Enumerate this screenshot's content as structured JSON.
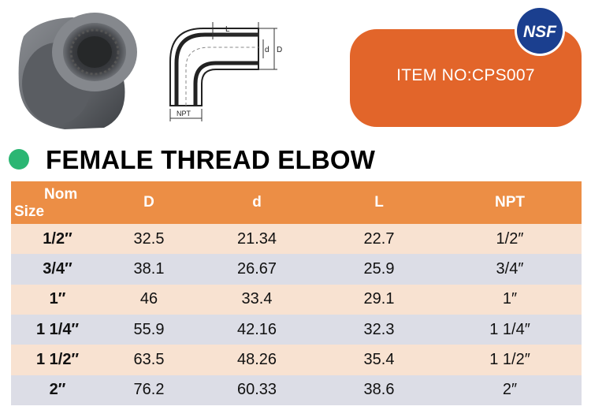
{
  "item_label": "ITEM NO:CPS007",
  "certification_logo": "NSF",
  "title": "FEMALE THREAD ELBOW",
  "drawing_labels": {
    "length": "L",
    "inner_diameter": "d",
    "outer_diameter": "D",
    "thread": "NPT"
  },
  "table": {
    "headers": {
      "nom": "Nom",
      "size": "Size",
      "D": "D",
      "d": "d",
      "L": "L",
      "NPT": "NPT"
    },
    "rows": [
      {
        "size": "1/2″",
        "D": "32.5",
        "d": "21.34",
        "L": "22.7",
        "NPT": "1/2″"
      },
      {
        "size": "3/4″",
        "D": "38.1",
        "d": "26.67",
        "L": "25.9",
        "NPT": "3/4″"
      },
      {
        "size": "1″",
        "D": "46",
        "d": "33.4",
        "L": "29.1",
        "NPT": "1″"
      },
      {
        "size": "1 1/4″",
        "D": "55.9",
        "d": "42.16",
        "L": "32.3",
        "NPT": "1 1/4″"
      },
      {
        "size": "1 1/2″",
        "D": "63.5",
        "d": "48.26",
        "L": "35.4",
        "NPT": "1 1/2″"
      },
      {
        "size": "2″",
        "D": "76.2",
        "d": "60.33",
        "L": "38.6",
        "NPT": "2″"
      }
    ]
  },
  "colors": {
    "header_orange": "#ec8e45",
    "item_box_orange": "#e2652a",
    "row_peach": "#f8e2d1",
    "row_gray": "#dcdde6",
    "bullet_green": "#2bb673",
    "nsf_blue": "#1b3f8f"
  }
}
